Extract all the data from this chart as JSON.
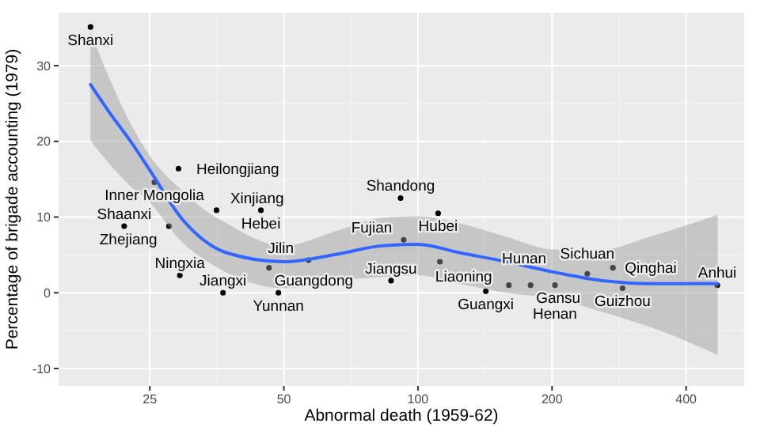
{
  "chart_data": {
    "type": "scatter",
    "xlabel": "Abnormal death (1959-62)",
    "ylabel": "Percentage of brigade accounting (1979)",
    "log": "x",
    "grid": true,
    "xlim": [
      15.6,
      540
    ],
    "xticks": [
      25,
      50,
      100,
      200,
      400
    ],
    "ylim": [
      -12.3,
      37
    ],
    "yticks": [
      -10,
      0,
      10,
      20,
      30
    ],
    "series": [
      {
        "type": "scatter",
        "color": "#000000",
        "marker": "circle",
        "x": [
          18.4,
          29.0,
          25.6,
          35.3,
          44.4,
          21.9,
          27.6,
          29.2,
          36.5,
          48.6,
          46.3,
          56.8,
          87,
          91.4,
          111,
          92.9,
          112,
          142,
          160,
          179,
          203,
          240,
          274,
          288,
          470
        ],
        "values": [
          35.1,
          16.4,
          14.6,
          10.9,
          10.9,
          8.8,
          8.8,
          2.3,
          0,
          0,
          3.3,
          4.3,
          1.6,
          12.5,
          10.5,
          7.0,
          4.1,
          0.2,
          1.0,
          1.0,
          1.0,
          2.5,
          3.3,
          0.6,
          1.0
        ],
        "value_labels": [
          "Shanxi",
          "Heilongjiang",
          "Inner Mongolia",
          "Xinjiang",
          "Hebei",
          "Shaanxi",
          "Zhejiang",
          "Ningxia",
          "Jiangxi",
          "Yunnan",
          "Guangdong",
          "Jilin",
          "Jiangsu",
          "Shandong",
          "Hubei",
          "Fujian",
          "Liaoning",
          "Guangxi",
          "Hunan",
          "Gansu",
          "Henan",
          "Sichuan",
          "Qinghai",
          "Guizhou",
          "Anhui"
        ]
      },
      {
        "type": "line",
        "color": "#3366ff",
        "x": [
          18.4,
          20.3,
          22.7,
          25,
          29.4,
          33.3,
          37.1,
          50,
          65.8,
          82.8,
          100,
          123.8,
          158,
          203,
          259,
          331,
          471
        ],
        "values": [
          27.5,
          23.8,
          19.9,
          16.2,
          9.9,
          6.8,
          5.3,
          4.1,
          5.1,
          6.2,
          6.4,
          5.3,
          4.1,
          2.7,
          1.6,
          1.2,
          1.2
        ],
        "lower": [
          20.1,
          17.0,
          14.0,
          11.9,
          6.8,
          4.3,
          2.7,
          0.6,
          1.6,
          2.1,
          2.3,
          1.2,
          0,
          -0.8,
          -2.5,
          -4.5,
          -8.2
        ],
        "upper": [
          34.5,
          28.3,
          22.2,
          18.1,
          13.6,
          10.9,
          9.2,
          6.2,
          8.2,
          9.9,
          10.1,
          9.2,
          7.4,
          5.7,
          5.7,
          7.4,
          10.3
        ]
      }
    ]
  }
}
